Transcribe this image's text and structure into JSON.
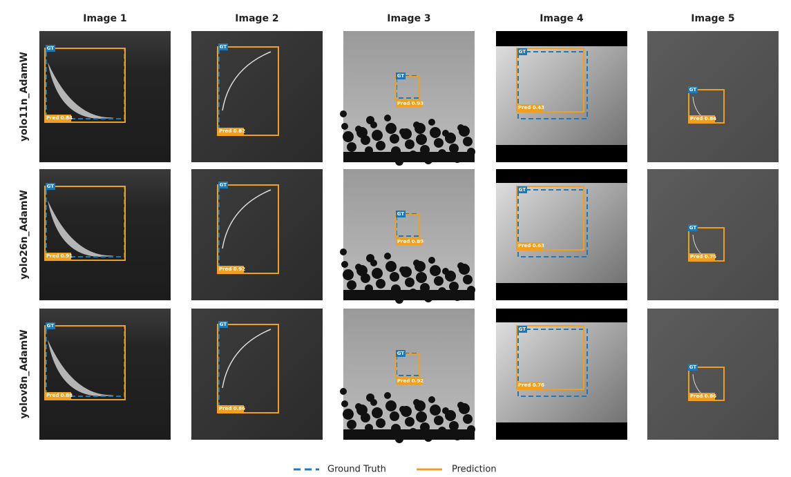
{
  "columns": [
    "Image 1",
    "Image 2",
    "Image 3",
    "Image 4",
    "Image 5"
  ],
  "rows": [
    {
      "label": "yolo11n_AdamW",
      "cells": [
        {
          "gt": "GT",
          "pred": "Pred 0.84"
        },
        {
          "gt": "GT",
          "pred": "Pred 0.82"
        },
        {
          "gt": "GT",
          "pred": "Pred 0.93"
        },
        {
          "gt": "GT",
          "pred": "Pred 0.43"
        },
        {
          "gt": "GT",
          "pred": "Pred 0.84"
        }
      ]
    },
    {
      "label": "yolo26n_AdamW",
      "cells": [
        {
          "gt": "GT",
          "pred": "Pred 0.91"
        },
        {
          "gt": "GT",
          "pred": "Pred 0.92"
        },
        {
          "gt": "GT",
          "pred": "Pred 0.89"
        },
        {
          "gt": "GT",
          "pred": "Pred 0.63"
        },
        {
          "gt": "GT",
          "pred": "Pred 0.75"
        }
      ]
    },
    {
      "label": "yolov8n_AdamW",
      "cells": [
        {
          "gt": "GT",
          "pred": "Pred 0.88"
        },
        {
          "gt": "GT",
          "pred": "Pred 0.86"
        },
        {
          "gt": "GT",
          "pred": "Pred 0.92"
        },
        {
          "gt": "GT",
          "pred": "Pred 0.76"
        },
        {
          "gt": "GT",
          "pred": "Pred 0.86"
        }
      ]
    }
  ],
  "legend": [
    "Ground Truth",
    "Prediction"
  ]
}
